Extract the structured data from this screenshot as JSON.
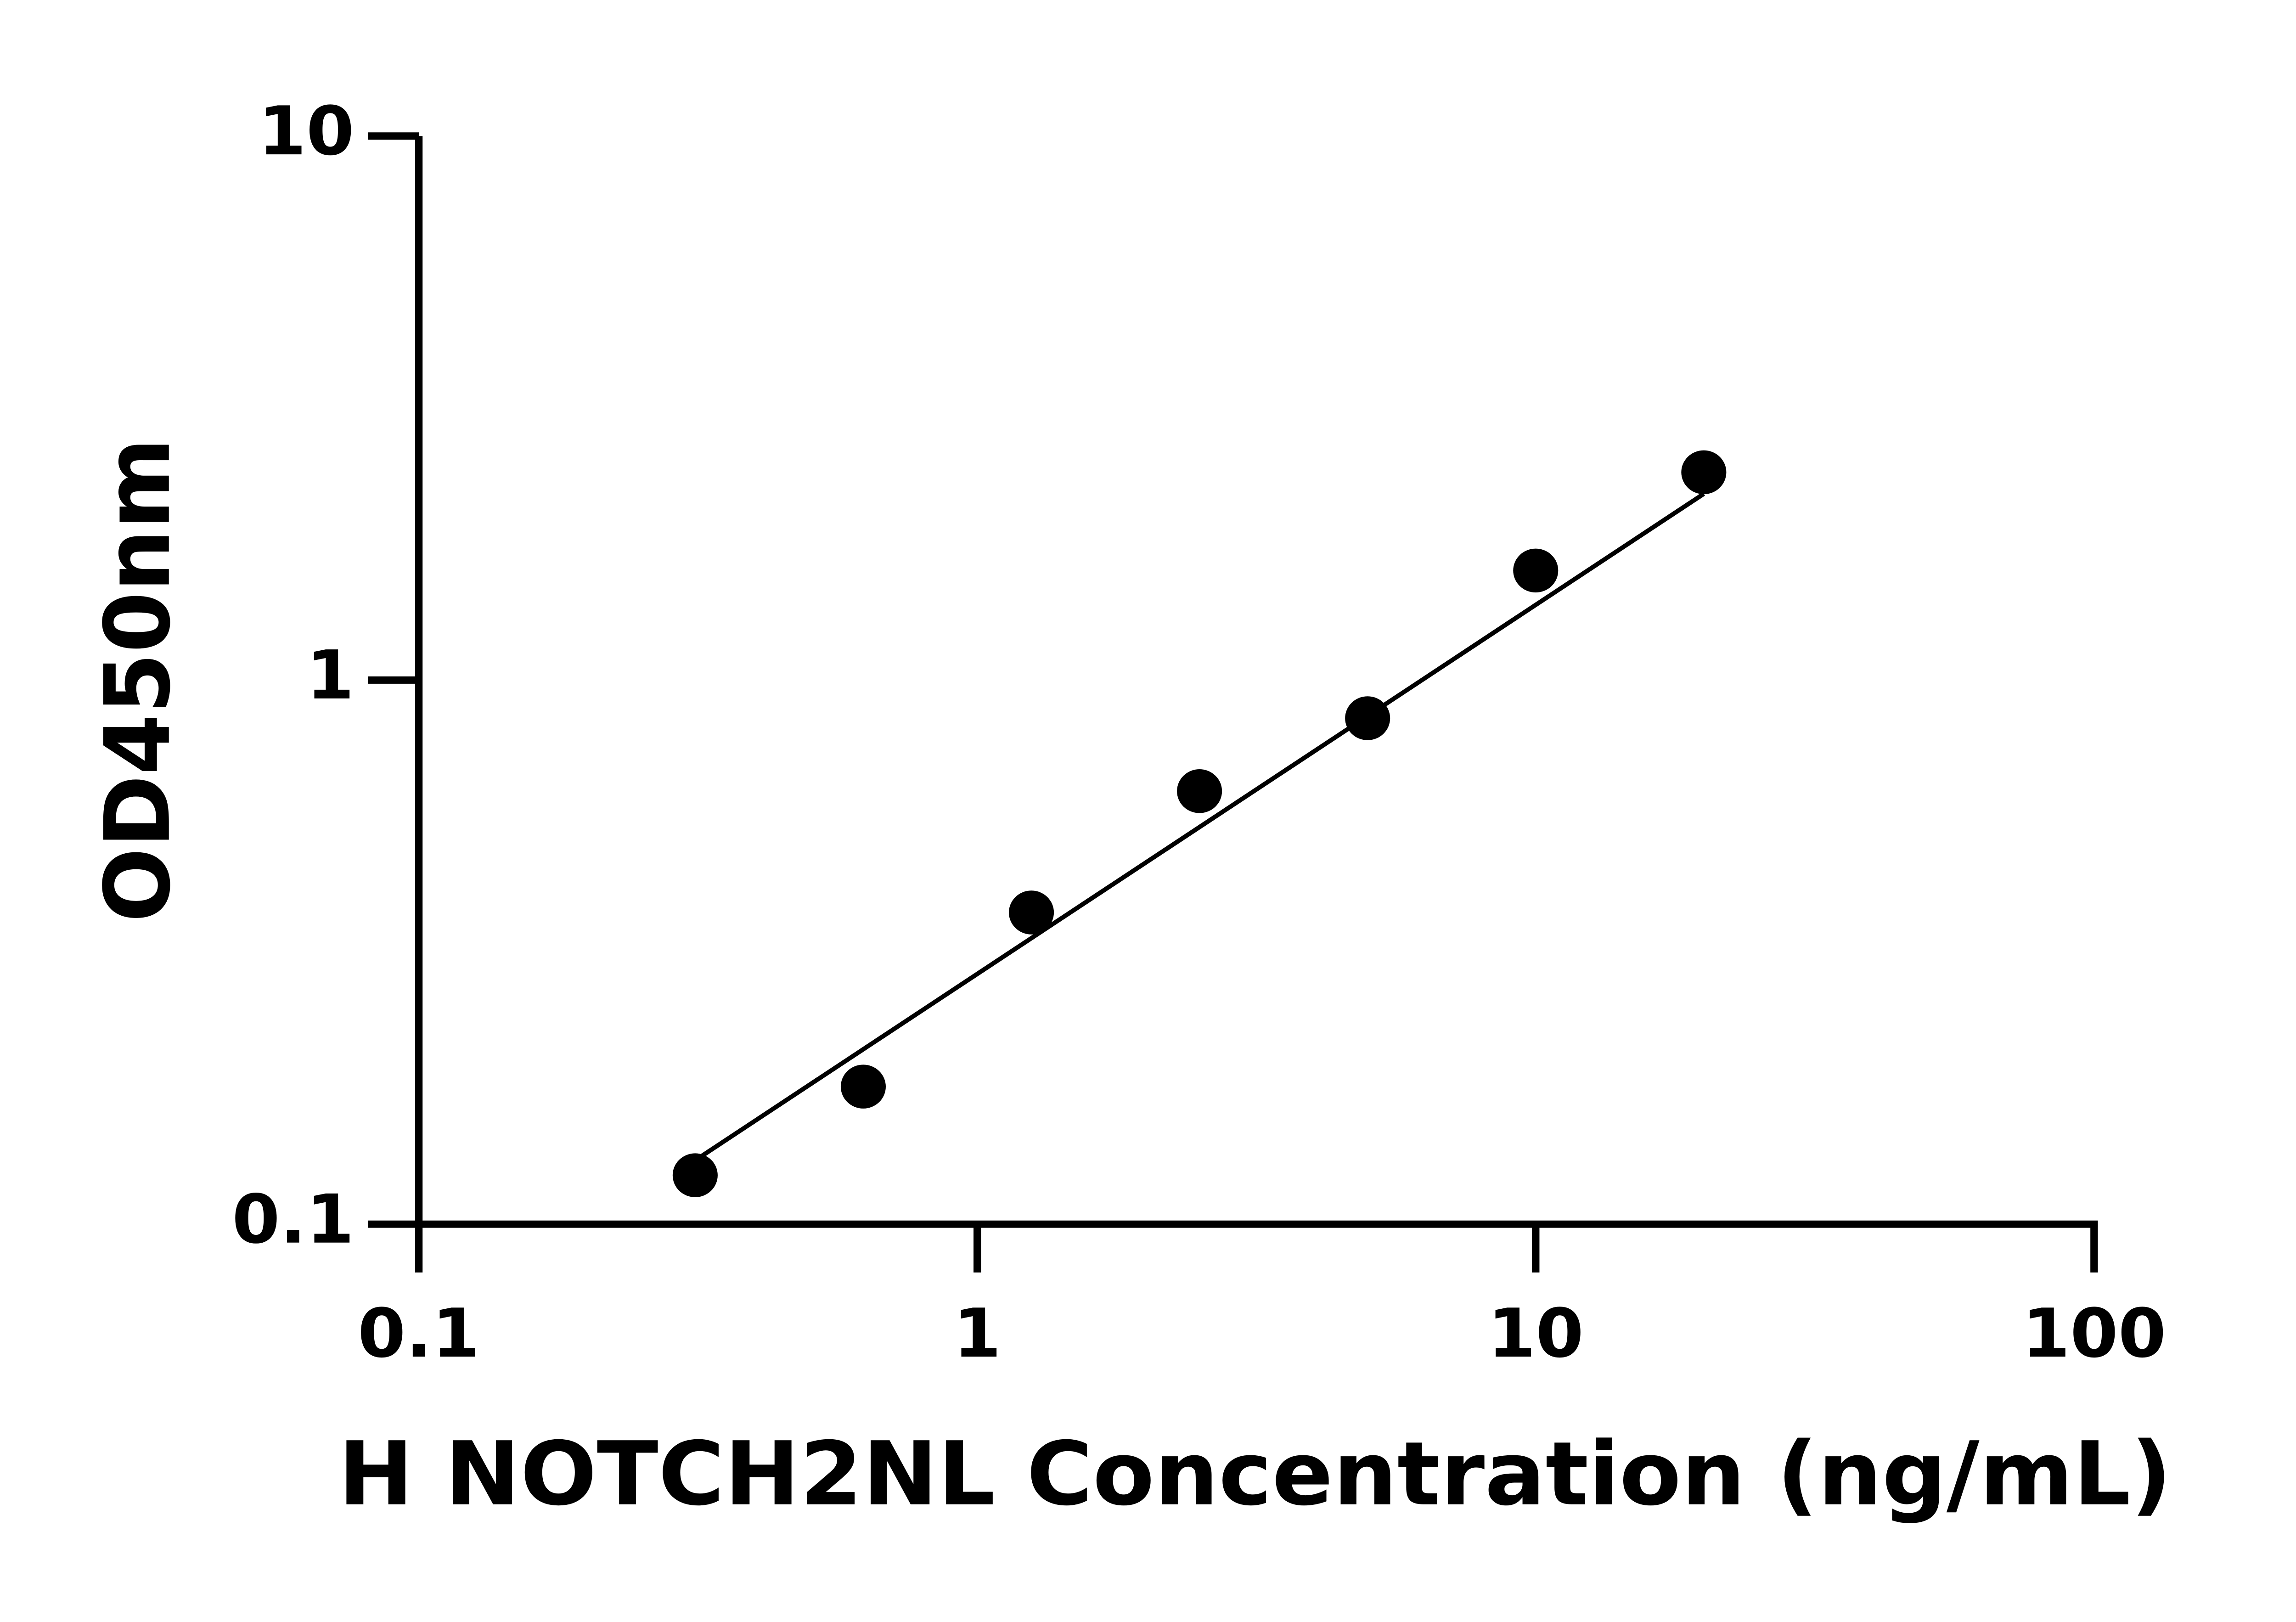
{
  "chart_data": {
    "type": "scatter",
    "x_label": "H NOTCH2NL Concentration (ng/mL)",
    "y_label": "OD450nm",
    "x_scale": "log",
    "y_scale": "log",
    "xlim": [
      0.1,
      100
    ],
    "ylim": [
      0.1,
      10
    ],
    "xticks": [
      0.1,
      1,
      10,
      100
    ],
    "yticks": [
      0.1,
      1,
      10
    ],
    "color": "#000000",
    "x": [
      0.3125,
      0.625,
      1.25,
      2.5,
      5,
      10,
      20
    ],
    "values": [
      0.123,
      0.179,
      0.374,
      0.625,
      0.851,
      1.59,
      2.41
    ],
    "fit_line": {
      "x": [
        0.3125,
        20
      ],
      "values": [
        0.131,
        2.2
      ]
    }
  }
}
